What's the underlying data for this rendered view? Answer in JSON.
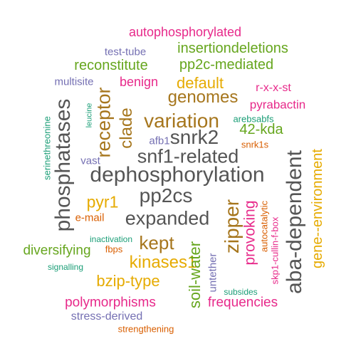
{
  "colors": {
    "teal": "#1b9e77",
    "orange": "#d95f02",
    "purple": "#7570b3",
    "magenta": "#e7298a",
    "green": "#66a61e",
    "gold": "#e6ab02",
    "brown": "#a6761d",
    "gray": "#555555"
  },
  "words": [
    {
      "text": "autophosphorylated",
      "color": "magenta"
    },
    {
      "text": "test-tube",
      "color": "purple"
    },
    {
      "text": "insertiondeletions",
      "color": "green"
    },
    {
      "text": "reconstitute",
      "color": "green"
    },
    {
      "text": "pp2c-mediated",
      "color": "green"
    },
    {
      "text": "multisite",
      "color": "purple"
    },
    {
      "text": "benign",
      "color": "magenta"
    },
    {
      "text": "default",
      "color": "gold"
    },
    {
      "text": "r-x-x-st",
      "color": "magenta"
    },
    {
      "text": "genomes",
      "color": "brown"
    },
    {
      "text": "pyrabactin",
      "color": "magenta"
    },
    {
      "text": "arebsabfs",
      "color": "teal"
    },
    {
      "text": "variation",
      "color": "brown"
    },
    {
      "text": "snrk2",
      "color": "gray"
    },
    {
      "text": "42-kda",
      "color": "green"
    },
    {
      "text": "snrk1s",
      "color": "orange"
    },
    {
      "text": "afb1",
      "color": "purple"
    },
    {
      "text": "snf1-related",
      "color": "gray"
    },
    {
      "text": "vast",
      "color": "purple"
    },
    {
      "text": "dephosphorylation",
      "color": "gray"
    },
    {
      "text": "pyr1",
      "color": "gold"
    },
    {
      "text": "pp2cs",
      "color": "gray"
    },
    {
      "text": "e-mail",
      "color": "orange"
    },
    {
      "text": "expanded",
      "color": "gray"
    },
    {
      "text": "inactivation",
      "color": "teal"
    },
    {
      "text": "kept",
      "color": "brown"
    },
    {
      "text": "diversifying",
      "color": "green"
    },
    {
      "text": "fbps",
      "color": "orange"
    },
    {
      "text": "kinases1",
      "color": "gold"
    },
    {
      "text": "signalling",
      "color": "teal"
    },
    {
      "text": "bzip-type",
      "color": "gold"
    },
    {
      "text": "untether",
      "color": "purple"
    },
    {
      "text": "subsides",
      "color": "teal"
    },
    {
      "text": "polymorphisms",
      "color": "magenta"
    },
    {
      "text": "frequencies",
      "color": "magenta"
    },
    {
      "text": "stress-derived",
      "color": "purple"
    },
    {
      "text": "strengthening",
      "color": "orange"
    },
    {
      "text": "phosphatases",
      "color": "gray"
    },
    {
      "text": "receptor",
      "color": "brown"
    },
    {
      "text": "clade",
      "color": "brown"
    },
    {
      "text": "leucine",
      "color": "teal"
    },
    {
      "text": "serinethreonine",
      "color": "teal"
    },
    {
      "text": "aba-dependent",
      "color": "gray"
    },
    {
      "text": "gene--environment",
      "color": "gold"
    },
    {
      "text": "zipper",
      "color": "brown"
    },
    {
      "text": "provoking",
      "color": "magenta"
    },
    {
      "text": "autocatalytic",
      "color": "orange"
    },
    {
      "text": "skp1-cullin-f-box",
      "color": "magenta"
    },
    {
      "text": "soil-water",
      "color": "green"
    }
  ]
}
